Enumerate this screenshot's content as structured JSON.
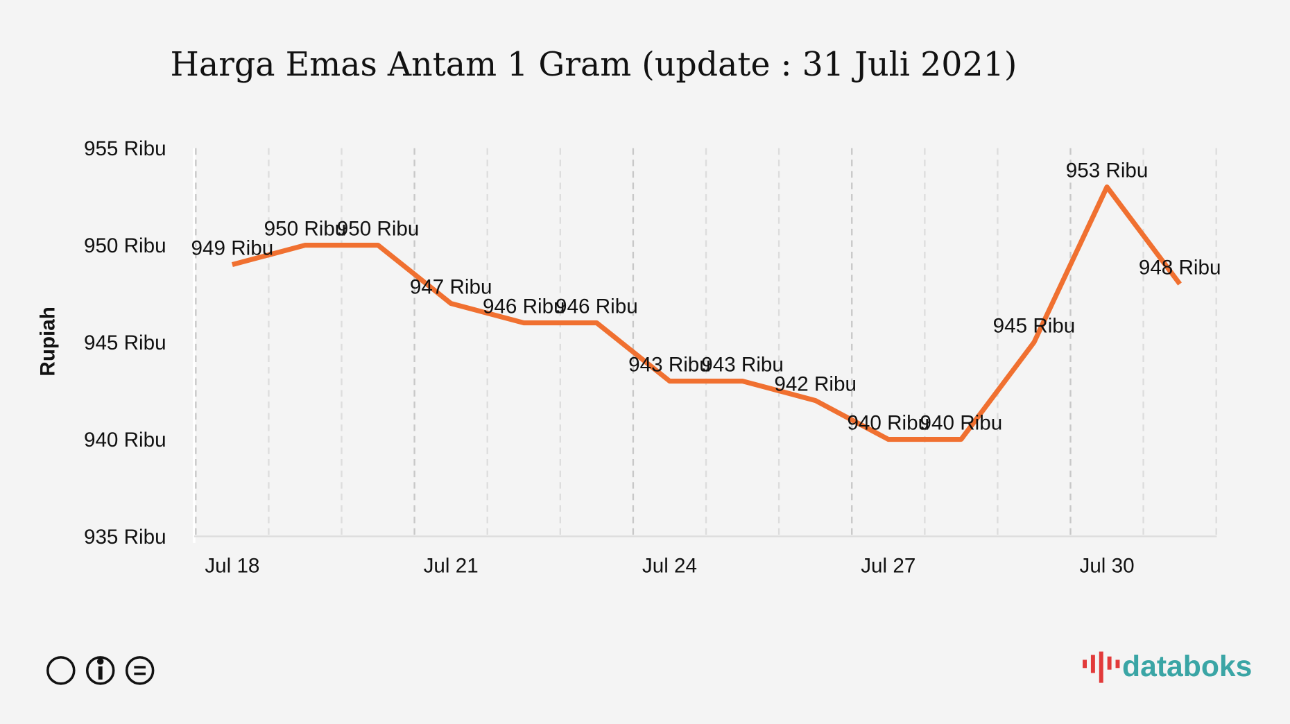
{
  "chart_data": {
    "type": "line",
    "title": "Harga Emas Antam 1 Gram (update : 31 Juli 2021)",
    "y_label": "Rupiah",
    "categories": [
      "Jul 18",
      null,
      null,
      "Jul 21",
      null,
      null,
      "Jul 24",
      null,
      null,
      "Jul 27",
      null,
      null,
      "Jul 30",
      null
    ],
    "series": [
      {
        "name": "Harga",
        "color": "#f07030",
        "values": [
          949,
          950,
          950,
          947,
          946,
          946,
          943,
          943,
          942,
          940,
          940,
          945,
          953,
          948
        ],
        "value_labels": [
          "949 Ribu",
          "950 Ribu",
          "950 Ribu",
          "947 Ribu",
          "946 Ribu",
          "946 Ribu",
          "943 Ribu",
          "943 Ribu",
          "942 Ribu",
          "940 Ribu",
          "940 Ribu",
          "945 Ribu",
          "953 Ribu",
          "948 Ribu"
        ]
      }
    ],
    "ylim": [
      935,
      955
    ],
    "yticks": [
      {
        "value": 935,
        "label": "935 Ribu"
      },
      {
        "value": 940,
        "label": "940 Ribu"
      },
      {
        "value": 945,
        "label": "945 Ribu"
      },
      {
        "value": 950,
        "label": "950 Ribu"
      },
      {
        "value": 955,
        "label": "955 Ribu"
      }
    ],
    "grid": true
  },
  "brand": "databoks"
}
